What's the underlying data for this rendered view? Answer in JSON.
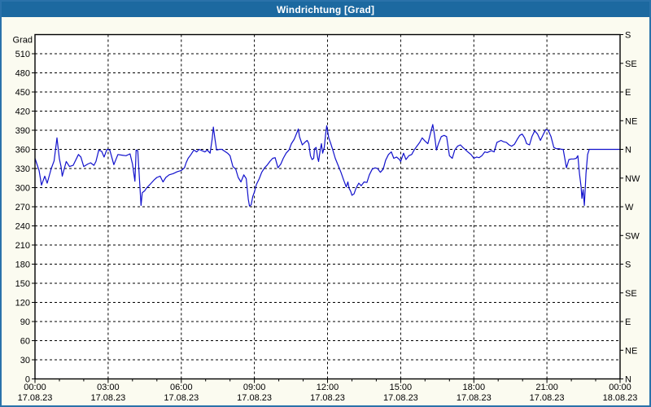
{
  "window": {
    "title": "Windrichtung [Grad]"
  },
  "colors": {
    "titlebar_bg": "#1c69a0",
    "titlebar_text": "#ffffff",
    "page_bg": "#fbfbf0",
    "page_border": "#2a72aa",
    "plot_bg": "#ffffff",
    "grid": "#000000",
    "axis": "#000000",
    "line": "#1111cc"
  },
  "chart_data": {
    "type": "line",
    "title": "Windrichtung [Grad]",
    "ylabel": "Grad",
    "ylim": [
      0,
      540
    ],
    "y_left_tick_step": 30,
    "y_left_ticks": [
      0,
      30,
      60,
      90,
      120,
      150,
      180,
      210,
      240,
      270,
      300,
      330,
      360,
      390,
      420,
      450,
      480,
      510
    ],
    "y_right_ticks": [
      {
        "deg": 540,
        "label": "S"
      },
      {
        "deg": 495,
        "label": "SE"
      },
      {
        "deg": 450,
        "label": "E"
      },
      {
        "deg": 405,
        "label": "NE"
      },
      {
        "deg": 360,
        "label": "N"
      },
      {
        "deg": 315,
        "label": "NW"
      },
      {
        "deg": 270,
        "label": "W"
      },
      {
        "deg": 225,
        "label": "SW"
      },
      {
        "deg": 180,
        "label": "S"
      },
      {
        "deg": 135,
        "label": "SE"
      },
      {
        "deg": 90,
        "label": "E"
      },
      {
        "deg": 45,
        "label": "NE"
      },
      {
        "deg": 0,
        "label": "N"
      }
    ],
    "xlim_hours": [
      0,
      24
    ],
    "x_ticks": [
      {
        "hour": 0,
        "time": "00:00",
        "date": "17.08.23"
      },
      {
        "hour": 3,
        "time": "03:00",
        "date": "17.08.23"
      },
      {
        "hour": 6,
        "time": "06:00",
        "date": "17.08.23"
      },
      {
        "hour": 9,
        "time": "09:00",
        "date": "17.08.23"
      },
      {
        "hour": 12,
        "time": "12:00",
        "date": "17.08.23"
      },
      {
        "hour": 15,
        "time": "15:00",
        "date": "17.08.23"
      },
      {
        "hour": 18,
        "time": "18:00",
        "date": "17.08.23"
      },
      {
        "hour": 21,
        "time": "21:00",
        "date": "17.08.23"
      },
      {
        "hour": 24,
        "time": "00:00",
        "date": "18.08.23"
      }
    ],
    "x_minor_tick_every_hours": 1,
    "grid": "dashed",
    "legend": "none",
    "series": [
      {
        "name": "Windrichtung",
        "color": "#1111cc",
        "points_format": "[minutes_since_00:00, degrees]",
        "points": [
          [
            0,
            346
          ],
          [
            10,
            327
          ],
          [
            16,
            304
          ],
          [
            24,
            318
          ],
          [
            30,
            307
          ],
          [
            40,
            330
          ],
          [
            47,
            342
          ],
          [
            54,
            378
          ],
          [
            60,
            345
          ],
          [
            64,
            333
          ],
          [
            67,
            318
          ],
          [
            77,
            341
          ],
          [
            85,
            333
          ],
          [
            94,
            335
          ],
          [
            107,
            352
          ],
          [
            113,
            348
          ],
          [
            120,
            333
          ],
          [
            130,
            337
          ],
          [
            137,
            339
          ],
          [
            145,
            335
          ],
          [
            150,
            341
          ],
          [
            157,
            359
          ],
          [
            164,
            357
          ],
          [
            170,
            348
          ],
          [
            177,
            360
          ],
          [
            184,
            359
          ],
          [
            194,
            336
          ],
          [
            204,
            352
          ],
          [
            214,
            351
          ],
          [
            224,
            350
          ],
          [
            234,
            353
          ],
          [
            240,
            337
          ],
          [
            246,
            310
          ],
          [
            249,
            359
          ],
          [
            253,
            358
          ],
          [
            261,
            272
          ],
          [
            264,
            292
          ],
          [
            270,
            295
          ],
          [
            274,
            299
          ],
          [
            280,
            303
          ],
          [
            286,
            307
          ],
          [
            293,
            312
          ],
          [
            300,
            316
          ],
          [
            308,
            318
          ],
          [
            315,
            309
          ],
          [
            322,
            316
          ],
          [
            330,
            320
          ],
          [
            340,
            322
          ],
          [
            350,
            325
          ],
          [
            360,
            327
          ],
          [
            368,
            331
          ],
          [
            372,
            339
          ],
          [
            377,
            346
          ],
          [
            384,
            352
          ],
          [
            391,
            359
          ],
          [
            398,
            356
          ],
          [
            404,
            360
          ],
          [
            411,
            358
          ],
          [
            418,
            356
          ],
          [
            424,
            359
          ],
          [
            431,
            354
          ],
          [
            436,
            376
          ],
          [
            439,
            395
          ],
          [
            443,
            376
          ],
          [
            447,
            359
          ],
          [
            454,
            360
          ],
          [
            460,
            360
          ],
          [
            467,
            357
          ],
          [
            474,
            354
          ],
          [
            480,
            350
          ],
          [
            487,
            333
          ],
          [
            494,
            329
          ],
          [
            500,
            316
          ],
          [
            507,
            309
          ],
          [
            514,
            320
          ],
          [
            520,
            314
          ],
          [
            525,
            282
          ],
          [
            528,
            271
          ],
          [
            532,
            273
          ],
          [
            536,
            286
          ],
          [
            540,
            293
          ],
          [
            545,
            305
          ],
          [
            552,
            314
          ],
          [
            558,
            324
          ],
          [
            565,
            331
          ],
          [
            571,
            335
          ],
          [
            578,
            341
          ],
          [
            585,
            346
          ],
          [
            591,
            347
          ],
          [
            598,
            331
          ],
          [
            605,
            337
          ],
          [
            611,
            346
          ],
          [
            618,
            354
          ],
          [
            625,
            359
          ],
          [
            631,
            369
          ],
          [
            638,
            376
          ],
          [
            645,
            387
          ],
          [
            648,
            392
          ],
          [
            651,
            380
          ],
          [
            658,
            367
          ],
          [
            666,
            372
          ],
          [
            670,
            374
          ],
          [
            674,
            369
          ],
          [
            678,
            350
          ],
          [
            682,
            344
          ],
          [
            686,
            346
          ],
          [
            688,
            361
          ],
          [
            692,
            363
          ],
          [
            696,
            346
          ],
          [
            698,
            341
          ],
          [
            702,
            359
          ],
          [
            705,
            369
          ],
          [
            708,
            354
          ],
          [
            712,
            363
          ],
          [
            715,
            382
          ],
          [
            718,
            397
          ],
          [
            723,
            378
          ],
          [
            727,
            371
          ],
          [
            733,
            359
          ],
          [
            739,
            346
          ],
          [
            746,
            335
          ],
          [
            753,
            324
          ],
          [
            759,
            313
          ],
          [
            766,
            301
          ],
          [
            770,
            309
          ],
          [
            773,
            299
          ],
          [
            777,
            294
          ],
          [
            780,
            288
          ],
          [
            785,
            290
          ],
          [
            790,
            299
          ],
          [
            797,
            307
          ],
          [
            803,
            303
          ],
          [
            810,
            309
          ],
          [
            817,
            308
          ],
          [
            823,
            320
          ],
          [
            830,
            329
          ],
          [
            837,
            331
          ],
          [
            843,
            330
          ],
          [
            850,
            324
          ],
          [
            857,
            329
          ],
          [
            863,
            343
          ],
          [
            870,
            352
          ],
          [
            877,
            356
          ],
          [
            883,
            346
          ],
          [
            890,
            348
          ],
          [
            897,
            344
          ],
          [
            900,
            341
          ],
          [
            907,
            354
          ],
          [
            913,
            344
          ],
          [
            920,
            350
          ],
          [
            927,
            352
          ],
          [
            933,
            359
          ],
          [
            940,
            365
          ],
          [
            947,
            371
          ],
          [
            953,
            378
          ],
          [
            960,
            373
          ],
          [
            967,
            369
          ],
          [
            973,
            384
          ],
          [
            979,
            399
          ],
          [
            983,
            384
          ],
          [
            988,
            359
          ],
          [
            993,
            369
          ],
          [
            1000,
            380
          ],
          [
            1007,
            382
          ],
          [
            1013,
            380
          ],
          [
            1020,
            350
          ],
          [
            1027,
            346
          ],
          [
            1033,
            359
          ],
          [
            1040,
            365
          ],
          [
            1047,
            367
          ],
          [
            1053,
            363
          ],
          [
            1060,
            359
          ],
          [
            1067,
            355
          ],
          [
            1073,
            352
          ],
          [
            1080,
            346
          ],
          [
            1087,
            348
          ],
          [
            1093,
            347
          ],
          [
            1100,
            350
          ],
          [
            1107,
            356
          ],
          [
            1113,
            355
          ],
          [
            1123,
            358
          ],
          [
            1130,
            356
          ],
          [
            1137,
            371
          ],
          [
            1147,
            374
          ],
          [
            1153,
            372
          ],
          [
            1160,
            371
          ],
          [
            1167,
            367
          ],
          [
            1173,
            365
          ],
          [
            1180,
            368
          ],
          [
            1187,
            376
          ],
          [
            1193,
            382
          ],
          [
            1199,
            384
          ],
          [
            1205,
            378
          ],
          [
            1210,
            369
          ],
          [
            1217,
            367
          ],
          [
            1223,
            380
          ],
          [
            1230,
            389
          ],
          [
            1237,
            384
          ],
          [
            1244,
            374
          ],
          [
            1250,
            382
          ],
          [
            1257,
            391
          ],
          [
            1263,
            390
          ],
          [
            1270,
            380
          ],
          [
            1277,
            363
          ],
          [
            1283,
            361
          ],
          [
            1290,
            361
          ],
          [
            1296,
            360
          ],
          [
            1300,
            360
          ],
          [
            1308,
            331
          ],
          [
            1314,
            344
          ],
          [
            1320,
            345
          ],
          [
            1326,
            345
          ],
          [
            1332,
            346
          ],
          [
            1336,
            350
          ],
          [
            1340,
            322
          ],
          [
            1344,
            301
          ],
          [
            1346,
            283
          ],
          [
            1349,
            297
          ],
          [
            1352,
            272
          ],
          [
            1356,
            322
          ],
          [
            1360,
            352
          ],
          [
            1364,
            360
          ],
          [
            1380,
            360
          ],
          [
            1400,
            360
          ],
          [
            1420,
            360
          ],
          [
            1440,
            360
          ]
        ]
      }
    ]
  }
}
